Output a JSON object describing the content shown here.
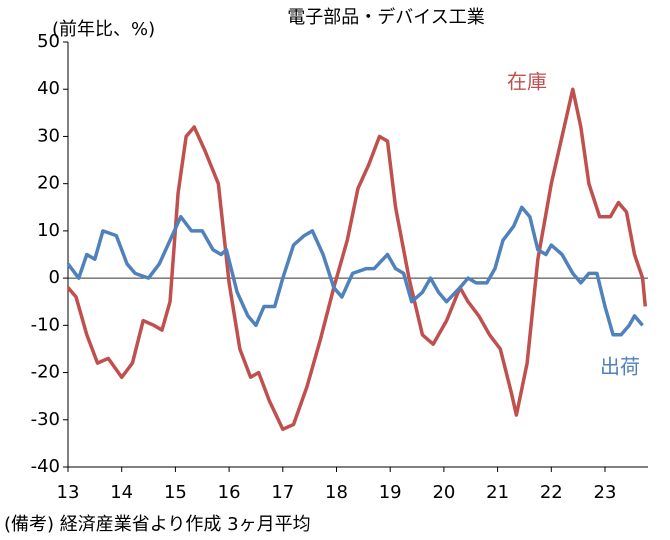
{
  "chart_data": {
    "type": "line",
    "title": "電子部品・デバイス工業",
    "y_label": "(前年比、%)",
    "footnote": "(備考) 経済産業省より作成 3ヶ月平均",
    "xlim": [
      13,
      23.8
    ],
    "xticks": [
      13,
      14,
      15,
      16,
      17,
      18,
      19,
      20,
      21,
      22,
      23
    ],
    "ylim": [
      -40,
      50
    ],
    "yticks": [
      -40,
      -30,
      -20,
      -10,
      0,
      10,
      20,
      30,
      40,
      50
    ],
    "zero_line": true,
    "series": [
      {
        "name": "在庫",
        "color": "#c0504d",
        "x": [
          13.0,
          13.15,
          13.35,
          13.55,
          13.75,
          14.0,
          14.2,
          14.4,
          14.6,
          14.75,
          14.9,
          15.05,
          15.2,
          15.35,
          15.55,
          15.8,
          16.0,
          16.2,
          16.4,
          16.55,
          16.75,
          17.0,
          17.2,
          17.45,
          17.7,
          17.95,
          18.2,
          18.4,
          18.6,
          18.8,
          18.95,
          19.1,
          19.35,
          19.6,
          19.8,
          20.05,
          20.3,
          20.45,
          20.65,
          20.85,
          21.05,
          21.25,
          21.35,
          21.55,
          21.75,
          22.0,
          22.2,
          22.4,
          22.55,
          22.7,
          22.9,
          23.1,
          23.25,
          23.4,
          23.55,
          23.7,
          23.75
        ],
        "values": [
          -2,
          -4,
          -12,
          -18,
          -17,
          -21,
          -18,
          -9,
          -10,
          -11,
          -5,
          18,
          30,
          32,
          27,
          20,
          -1,
          -15,
          -21,
          -20,
          -26,
          -32,
          -31,
          -23,
          -13,
          -2,
          8,
          19,
          24,
          30,
          29,
          15,
          0,
          -12,
          -14,
          -9,
          -2,
          -5,
          -8,
          -12,
          -15,
          -24,
          -29,
          -18,
          4,
          20,
          30,
          40,
          32,
          20,
          13,
          13,
          16,
          14,
          5,
          0,
          -6
        ]
      },
      {
        "name": "出荷",
        "color": "#4f81bd",
        "x": [
          13.0,
          13.2,
          13.35,
          13.5,
          13.65,
          13.9,
          14.1,
          14.25,
          14.5,
          14.7,
          14.9,
          15.1,
          15.3,
          15.5,
          15.7,
          15.85,
          15.95,
          16.15,
          16.35,
          16.5,
          16.65,
          16.85,
          17.0,
          17.2,
          17.4,
          17.55,
          17.75,
          17.95,
          18.1,
          18.3,
          18.55,
          18.7,
          18.95,
          19.1,
          19.25,
          19.4,
          19.6,
          19.75,
          19.9,
          20.05,
          20.3,
          20.45,
          20.6,
          20.8,
          20.95,
          21.1,
          21.3,
          21.45,
          21.6,
          21.75,
          21.9,
          22.0,
          22.2,
          22.4,
          22.55,
          22.7,
          22.85,
          23.0,
          23.15,
          23.3,
          23.45,
          23.55,
          23.7
        ],
        "values": [
          3,
          0,
          5,
          4,
          10,
          9,
          3,
          1,
          0,
          3,
          8,
          13,
          10,
          10,
          6,
          5,
          6,
          -3,
          -8,
          -10,
          -6,
          -6,
          0,
          7,
          9,
          10,
          5,
          -2,
          -4,
          1,
          2,
          2,
          5,
          2,
          1,
          -5,
          -3,
          0,
          -3,
          -5,
          -2,
          0,
          -1,
          -1,
          2,
          8,
          11,
          15,
          13,
          6,
          5,
          7,
          5,
          1,
          -1,
          1,
          1,
          -6,
          -12,
          -12,
          -10,
          -8,
          -10
        ]
      }
    ]
  }
}
